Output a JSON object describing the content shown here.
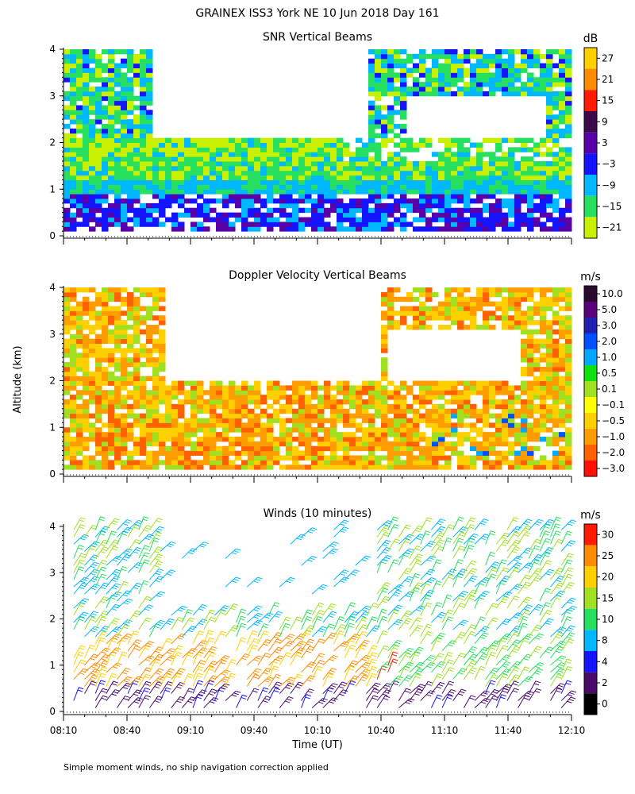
{
  "title": "GRAINEX ISS3 York NE  10 Jun 2018 Day 161",
  "footnote": "Simple moment winds, no ship navigation correction applied",
  "chart_data": [
    {
      "type": "heatmap",
      "title": "SNR Vertical Beams",
      "ylabel": "Altitude (km)",
      "ylim": [
        0,
        4
      ],
      "yticks": [
        "0",
        "1",
        "2",
        "3",
        "4"
      ],
      "colorbar_unit": "dB",
      "colorbar_labels": [
        "27",
        "21",
        "15",
        "9",
        "3",
        "−3",
        "−9",
        "−15",
        "−21"
      ],
      "colorbar_colors": [
        "#ffd000",
        "#ff8c00",
        "#ff1a00",
        "#3a0a4a",
        "#5a00a8",
        "#1414ff",
        "#00b8ff",
        "#28e060",
        "#c8f000"
      ],
      "xlabel": "",
      "xtick_labels": [],
      "time_range": [
        "08:10",
        "12:10"
      ]
    },
    {
      "type": "heatmap",
      "title": "Doppler Velocity Vertical Beams",
      "ylim": [
        0,
        4
      ],
      "yticks": [
        "0",
        "1",
        "2",
        "3",
        "4"
      ],
      "colorbar_unit": "m/s",
      "colorbar_labels": [
        "10.0",
        "5.0",
        "3.0",
        "2.0",
        "1.0",
        "0.5",
        "0.1",
        "−0.1",
        "−0.5",
        "−1.0",
        "−2.0",
        "−3.0"
      ],
      "colorbar_colors": [
        "#2a0a30",
        "#5a007a",
        "#2020b0",
        "#0050ff",
        "#00a8ff",
        "#10e010",
        "#a0e020",
        "#ffff00",
        "#ffd000",
        "#ff9c00",
        "#ff6000",
        "#ff1000"
      ],
      "xtick_labels": [],
      "time_range": [
        "08:10",
        "12:10"
      ]
    },
    {
      "type": "scatter",
      "title": "Winds (10 minutes)",
      "ylim": [
        0,
        4
      ],
      "yticks": [
        "0",
        "1",
        "2",
        "3",
        "4"
      ],
      "colorbar_unit": "m/s",
      "colorbar_labels": [
        "30",
        "25",
        "20",
        "15",
        "10",
        "8",
        "4",
        "2",
        "0"
      ],
      "colorbar_colors": [
        "#ff1a00",
        "#ff8c00",
        "#ffd000",
        "#a0e020",
        "#28e060",
        "#00b8ff",
        "#1414ff",
        "#4a0a6a",
        "#000000"
      ],
      "xlabel": "Time (UT)",
      "xtick_labels": [
        "08:10",
        "08:40",
        "09:10",
        "09:40",
        "10:10",
        "10:40",
        "11:10",
        "11:40",
        "12:10"
      ]
    }
  ]
}
